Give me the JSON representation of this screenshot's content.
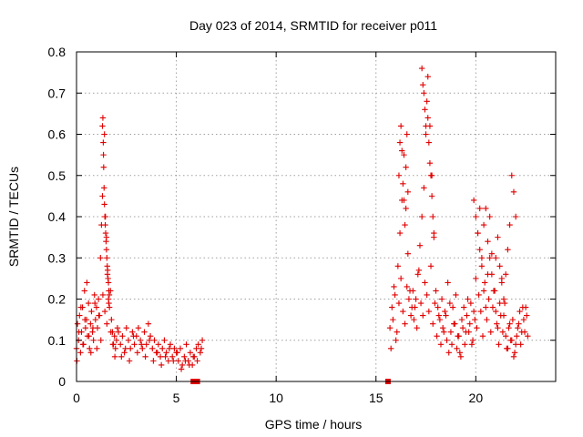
{
  "chart_data": {
    "type": "scatter",
    "title": "Day 023 of 2014, SRMTID for receiver p011",
    "xlabel": "GPS time / hours",
    "ylabel": "SRMTID / TECUs",
    "xlim": [
      0,
      24
    ],
    "ylim": [
      0,
      0.8
    ],
    "xticks": [
      0,
      5,
      10,
      15,
      20
    ],
    "yticks": [
      0,
      0.1,
      0.2,
      0.3,
      0.4,
      0.5,
      0.6,
      0.7,
      0.8
    ],
    "xtick_labels": [
      "0",
      "5",
      "10",
      "15",
      "20"
    ],
    "ytick_labels": [
      "0",
      "0.1",
      "0.2",
      "0.3",
      "0.4",
      "0.5",
      "0.6",
      "0.7",
      "0.8"
    ],
    "grid": true,
    "marker": "+",
    "color": "#e00000",
    "zero_markers_x": [
      5.85,
      6.05,
      15.6
    ],
    "series": [
      {
        "name": "SRMTID",
        "x": [
          0.0,
          0.05,
          0.1,
          0.15,
          0.2,
          0.25,
          0.3,
          0.35,
          0.4,
          0.45,
          0.5,
          0.55,
          0.6,
          0.65,
          0.7,
          0.75,
          0.8,
          0.85,
          0.9,
          0.95,
          1.0,
          1.05,
          1.1,
          1.15,
          1.2,
          1.25,
          1.3,
          1.35,
          1.4,
          1.45,
          1.5,
          1.55,
          1.6,
          1.65,
          1.7,
          1.75,
          1.8,
          1.85,
          1.9,
          1.95,
          2.0,
          2.1,
          2.2,
          2.3,
          2.4,
          2.5,
          2.6,
          2.7,
          2.8,
          2.9,
          3.0,
          3.1,
          3.2,
          3.3,
          3.4,
          3.5,
          3.6,
          3.7,
          3.8,
          3.9,
          4.0,
          4.1,
          4.2,
          4.3,
          4.4,
          4.5,
          4.6,
          4.7,
          4.8,
          4.9,
          5.0,
          5.1,
          5.2,
          5.3,
          5.4,
          5.5,
          5.6,
          5.7,
          5.8,
          5.9,
          6.0,
          6.1,
          6.2,
          6.3,
          0.02,
          0.12,
          0.22,
          0.32,
          0.42,
          0.52,
          0.62,
          0.72,
          0.82,
          0.92,
          1.02,
          1.12,
          1.22,
          1.32,
          1.42,
          1.52,
          1.62,
          1.72,
          1.82,
          1.92,
          2.05,
          2.25,
          2.45,
          2.65,
          2.85,
          3.05,
          3.25,
          3.45,
          3.65,
          3.85,
          4.05,
          4.25,
          4.45,
          4.65,
          4.85,
          5.05,
          5.25,
          5.45,
          5.65,
          5.85,
          6.05,
          6.25,
          1.3,
          1.32,
          1.34,
          1.36,
          1.38,
          1.4,
          1.42,
          1.44,
          1.46,
          1.48,
          1.5,
          1.52,
          1.54,
          1.56,
          1.58,
          1.6,
          1.62,
          1.64,
          15.7,
          15.8,
          15.9,
          16.0,
          16.1,
          16.2,
          16.3,
          16.4,
          16.5,
          16.6,
          16.7,
          16.8,
          16.9,
          17.0,
          17.1,
          17.2,
          17.3,
          17.4,
          17.5,
          17.6,
          17.7,
          17.8,
          17.9,
          18.0,
          18.1,
          18.2,
          18.3,
          18.4,
          18.5,
          18.6,
          18.7,
          18.8,
          18.9,
          19.0,
          19.1,
          19.2,
          19.3,
          19.4,
          19.5,
          19.6,
          19.7,
          19.8,
          19.9,
          20.0,
          20.1,
          20.2,
          20.3,
          20.4,
          20.5,
          20.6,
          20.7,
          20.8,
          20.9,
          21.0,
          21.1,
          21.2,
          21.3,
          21.4,
          21.5,
          21.6,
          21.7,
          21.8,
          21.9,
          22.0,
          22.1,
          22.2,
          22.3,
          22.4,
          22.5,
          22.6,
          15.75,
          15.85,
          15.95,
          16.05,
          16.15,
          16.25,
          16.35,
          16.45,
          16.55,
          16.65,
          16.75,
          16.85,
          16.95,
          17.05,
          17.15,
          17.25,
          17.35,
          17.45,
          17.55,
          17.65,
          17.75,
          17.85,
          17.95,
          18.05,
          18.15,
          18.25,
          18.35,
          18.45,
          18.55,
          18.65,
          18.75,
          18.85,
          18.95,
          19.05,
          19.15,
          19.25,
          19.35,
          19.45,
          19.55,
          19.65,
          19.75,
          19.85,
          19.95,
          20.05,
          20.15,
          20.25,
          20.35,
          20.45,
          20.55,
          20.65,
          20.75,
          20.85,
          20.95,
          21.05,
          21.15,
          21.25,
          21.35,
          21.45,
          21.55,
          21.65,
          21.75,
          21.85,
          21.95,
          22.05,
          22.15,
          22.25,
          22.35,
          22.45,
          22.55,
          16.15,
          16.2,
          16.25,
          16.3,
          16.35,
          16.4,
          16.45,
          16.5,
          16.55,
          16.6,
          17.3,
          17.35,
          17.4,
          17.45,
          17.5,
          17.55,
          17.6,
          17.65,
          17.7,
          17.75,
          17.8,
          17.85,
          17.9,
          19.9,
          20.0,
          20.1,
          20.2,
          20.3,
          20.4,
          20.5,
          20.6,
          20.7,
          20.8,
          20.9,
          21.0,
          21.1,
          21.2,
          21.3,
          21.4,
          21.5,
          21.6,
          21.7,
          21.8,
          21.9,
          22.0
        ],
        "y": [
          0.08,
          0.14,
          0.1,
          0.16,
          0.07,
          0.12,
          0.18,
          0.09,
          0.22,
          0.13,
          0.15,
          0.11,
          0.19,
          0.08,
          0.14,
          0.17,
          0.12,
          0.1,
          0.21,
          0.15,
          0.18,
          0.13,
          0.2,
          0.16,
          0.3,
          0.38,
          0.45,
          0.55,
          0.6,
          0.4,
          0.35,
          0.26,
          0.2,
          0.18,
          0.22,
          0.15,
          0.12,
          0.09,
          0.11,
          0.08,
          0.1,
          0.12,
          0.09,
          0.11,
          0.07,
          0.13,
          0.1,
          0.08,
          0.12,
          0.09,
          0.11,
          0.13,
          0.1,
          0.08,
          0.12,
          0.09,
          0.14,
          0.11,
          0.08,
          0.1,
          0.07,
          0.09,
          0.06,
          0.08,
          0.1,
          0.07,
          0.05,
          0.09,
          0.06,
          0.08,
          0.07,
          0.05,
          0.08,
          0.04,
          0.06,
          0.09,
          0.05,
          0.07,
          0.04,
          0.06,
          0.08,
          0.09,
          0.07,
          0.1,
          0.05,
          0.12,
          0.18,
          0.09,
          0.15,
          0.24,
          0.11,
          0.07,
          0.13,
          0.19,
          0.08,
          0.16,
          0.1,
          0.21,
          0.17,
          0.14,
          0.19,
          0.12,
          0.09,
          0.06,
          0.13,
          0.06,
          0.08,
          0.05,
          0.11,
          0.07,
          0.09,
          0.06,
          0.1,
          0.05,
          0.07,
          0.04,
          0.06,
          0.08,
          0.05,
          0.07,
          0.03,
          0.05,
          0.04,
          0.06,
          0.05,
          0.08,
          0.62,
          0.64,
          0.58,
          0.52,
          0.47,
          0.43,
          0.4,
          0.38,
          0.36,
          0.34,
          0.32,
          0.3,
          0.28,
          0.27,
          0.25,
          0.24,
          0.22,
          0.21,
          0.13,
          0.18,
          0.23,
          0.1,
          0.28,
          0.36,
          0.44,
          0.55,
          0.42,
          0.31,
          0.22,
          0.18,
          0.15,
          0.2,
          0.26,
          0.33,
          0.4,
          0.47,
          0.6,
          0.74,
          0.62,
          0.5,
          0.35,
          0.22,
          0.18,
          0.15,
          0.2,
          0.12,
          0.16,
          0.24,
          0.19,
          0.09,
          0.14,
          0.21,
          0.11,
          0.07,
          0.15,
          0.18,
          0.12,
          0.2,
          0.14,
          0.09,
          0.17,
          0.25,
          0.36,
          0.42,
          0.3,
          0.22,
          0.18,
          0.26,
          0.4,
          0.31,
          0.22,
          0.17,
          0.13,
          0.19,
          0.25,
          0.16,
          0.11,
          0.08,
          0.14,
          0.1,
          0.06,
          0.09,
          0.13,
          0.17,
          0.12,
          0.15,
          0.18,
          0.11,
          0.08,
          0.15,
          0.21,
          0.12,
          0.19,
          0.25,
          0.17,
          0.14,
          0.23,
          0.2,
          0.16,
          0.22,
          0.18,
          0.13,
          0.27,
          0.19,
          0.16,
          0.24,
          0.21,
          0.17,
          0.28,
          0.14,
          0.19,
          0.11,
          0.16,
          0.09,
          0.13,
          0.17,
          0.1,
          0.07,
          0.12,
          0.18,
          0.14,
          0.08,
          0.11,
          0.06,
          0.13,
          0.09,
          0.16,
          0.12,
          0.19,
          0.1,
          0.15,
          0.13,
          0.21,
          0.17,
          0.11,
          0.24,
          0.15,
          0.2,
          0.12,
          0.18,
          0.22,
          0.14,
          0.09,
          0.16,
          0.12,
          0.19,
          0.08,
          0.13,
          0.1,
          0.15,
          0.07,
          0.11,
          0.14,
          0.09,
          0.18,
          0.12,
          0.16,
          0.5,
          0.58,
          0.62,
          0.56,
          0.48,
          0.44,
          0.38,
          0.52,
          0.6,
          0.46,
          0.76,
          0.72,
          0.7,
          0.66,
          0.62,
          0.68,
          0.64,
          0.58,
          0.53,
          0.5,
          0.45,
          0.4,
          0.36,
          0.44,
          0.4,
          0.36,
          0.32,
          0.28,
          0.38,
          0.42,
          0.34,
          0.3,
          0.26,
          0.22,
          0.3,
          0.35,
          0.28,
          0.24,
          0.2,
          0.26,
          0.32,
          0.38,
          0.5,
          0.46,
          0.4
        ]
      }
    ]
  }
}
